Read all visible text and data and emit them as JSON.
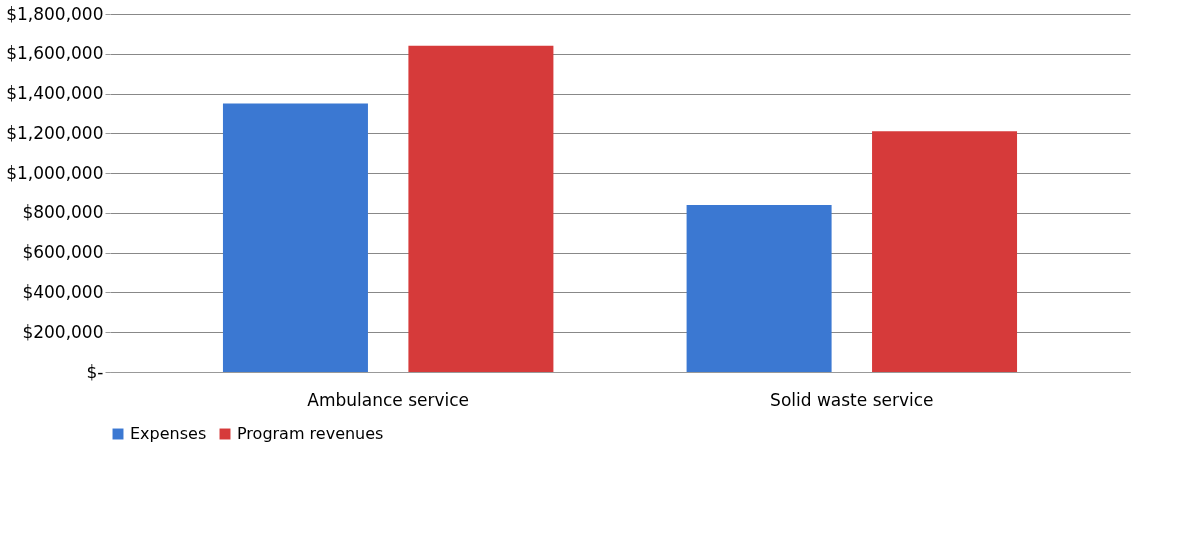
{
  "chart_data": {
    "type": "bar",
    "categories": [
      "Ambulance service",
      "Solid waste service"
    ],
    "series": [
      {
        "name": "Expenses",
        "color": "#3b78d2",
        "values": [
          1350000,
          840000
        ]
      },
      {
        "name": "Program revenues",
        "color": "#d63a3a",
        "values": [
          1640000,
          1210000
        ]
      }
    ],
    "ylim": [
      0,
      1800000
    ],
    "yticks": [
      {
        "value": 0,
        "label": "$-"
      },
      {
        "value": 200000,
        "label": "$200,000"
      },
      {
        "value": 400000,
        "label": "$400,000"
      },
      {
        "value": 600000,
        "label": "$600,000"
      },
      {
        "value": 800000,
        "label": "$800,000"
      },
      {
        "value": 1000000,
        "label": "$1,000,000"
      },
      {
        "value": 1200000,
        "label": "$1,200,000"
      },
      {
        "value": 1400000,
        "label": "$1,400,000"
      },
      {
        "value": 1600000,
        "label": "$1,600,000"
      },
      {
        "value": 1800000,
        "label": "$1,800,000"
      }
    ],
    "grid": "y",
    "legend": "bottom"
  }
}
